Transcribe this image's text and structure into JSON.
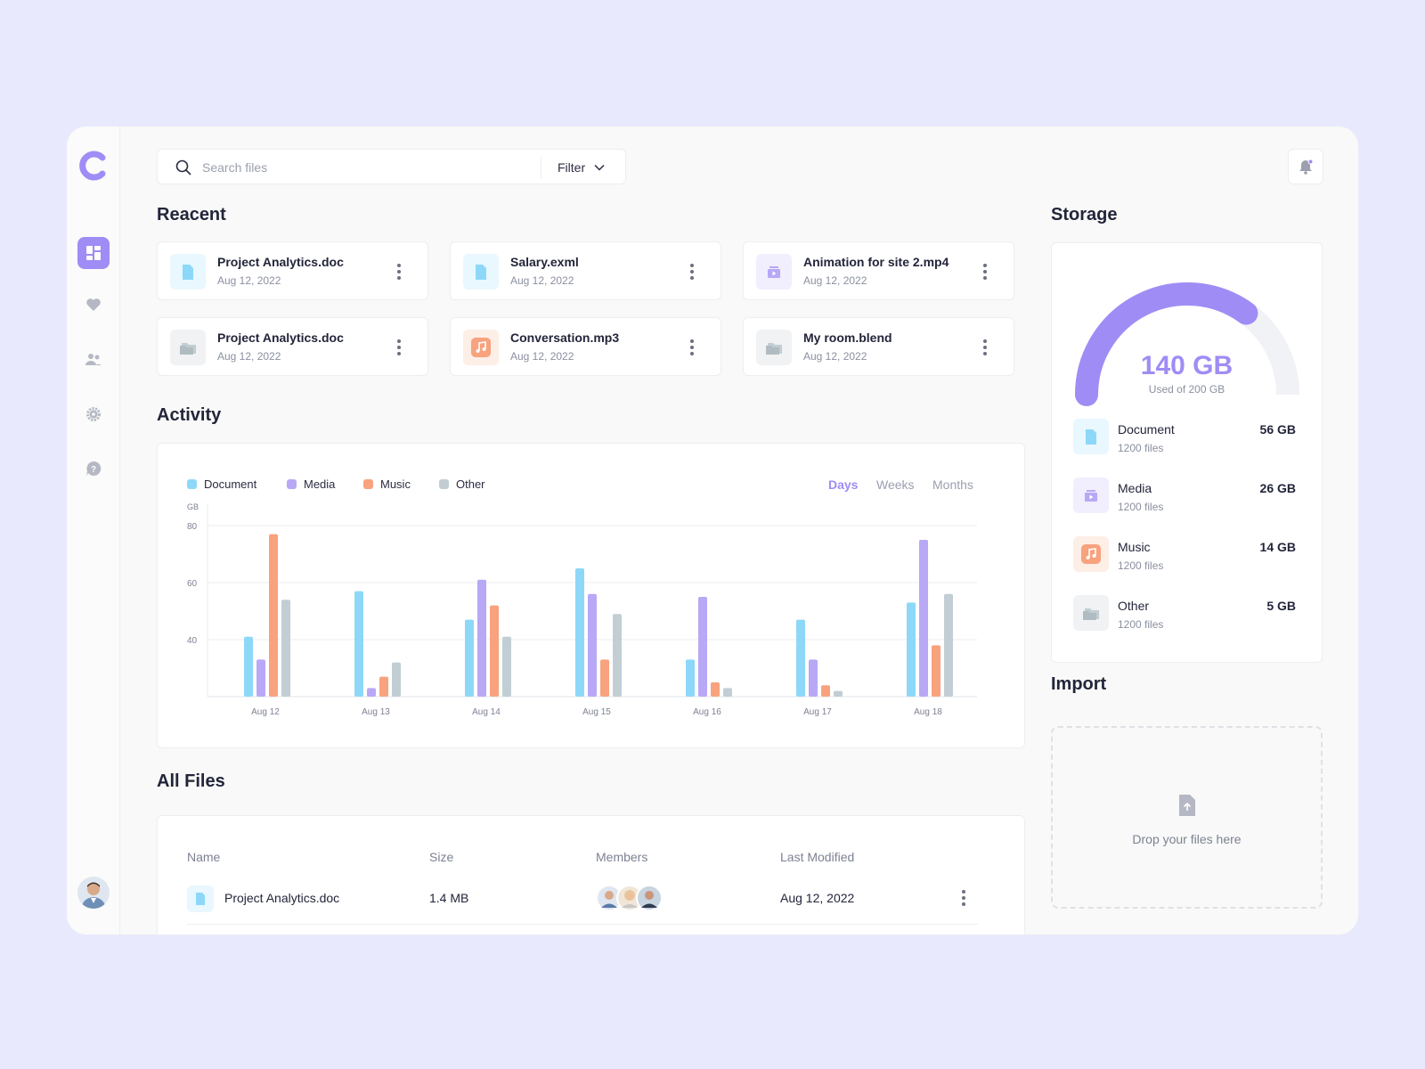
{
  "search": {
    "placeholder": "Search files",
    "filter_label": "Filter"
  },
  "recent": {
    "title": "Reacent",
    "files": [
      {
        "name": "Project Analytics.doc",
        "date": "Aug 12, 2022",
        "icon": "document-icon"
      },
      {
        "name": "Salary.exml",
        "date": "Aug 12, 2022",
        "icon": "document-icon"
      },
      {
        "name": "Animation for site 2.mp4",
        "date": "Aug 12, 2022",
        "icon": "media-icon"
      },
      {
        "name": "Project Analytics.doc",
        "date": "Aug 12, 2022",
        "icon": "folder-icon"
      },
      {
        "name": "Conversation.mp3",
        "date": "Aug 12, 2022",
        "icon": "music-icon"
      },
      {
        "name": "My room.blend",
        "date": "Aug 12, 2022",
        "icon": "folder-icon"
      }
    ]
  },
  "activity": {
    "title": "Activity",
    "ranges": [
      "Days",
      "Weeks",
      "Months"
    ],
    "active_range": "Days"
  },
  "chart_data": {
    "type": "bar",
    "title": "",
    "ylabel": "GB",
    "ylim": [
      20,
      80
    ],
    "yticks": [
      40,
      60,
      80
    ],
    "categories": [
      "Aug 12",
      "Aug 13",
      "Aug 14",
      "Aug 15",
      "Aug 16",
      "Aug 17",
      "Aug 18"
    ],
    "series": [
      {
        "name": "Document",
        "color": "#8dd8f8",
        "values": [
          41,
          57,
          47,
          65,
          33,
          47,
          53
        ]
      },
      {
        "name": "Media",
        "color": "#b8a8f6",
        "values": [
          33,
          23,
          61,
          56,
          55,
          33,
          75
        ]
      },
      {
        "name": "Music",
        "color": "#f8a27e",
        "values": [
          77,
          27,
          52,
          33,
          25,
          24,
          38
        ]
      },
      {
        "name": "Other",
        "color": "#c2ced3",
        "values": [
          54,
          32,
          41,
          49,
          23,
          22,
          56
        ]
      }
    ],
    "legend": "top-left",
    "grid": true
  },
  "all_files": {
    "title": "All Files",
    "headers": [
      "Name",
      "Size",
      "Members",
      "Last Modified"
    ],
    "rows": [
      {
        "name": "Project Analytics.doc",
        "size": "1.4 MB",
        "modified": "Aug 12, 2022"
      }
    ]
  },
  "storage": {
    "title": "Storage",
    "used_value": "140 GB",
    "used_caption": "Used of 200 GB",
    "used_fraction": 0.7,
    "accent": "#a08cf5",
    "items": [
      {
        "name": "Document",
        "count": "1200 files",
        "size": "56 GB",
        "icon": "document-icon"
      },
      {
        "name": "Media",
        "count": "1200 files",
        "size": "26 GB",
        "icon": "media-icon"
      },
      {
        "name": "Music",
        "count": "1200 files",
        "size": "14 GB",
        "icon": "music-icon"
      },
      {
        "name": "Other",
        "count": "1200 files",
        "size": "5 GB",
        "icon": "folder-icon"
      }
    ]
  },
  "import": {
    "title": "Import",
    "drop_text": "Drop your files here"
  }
}
